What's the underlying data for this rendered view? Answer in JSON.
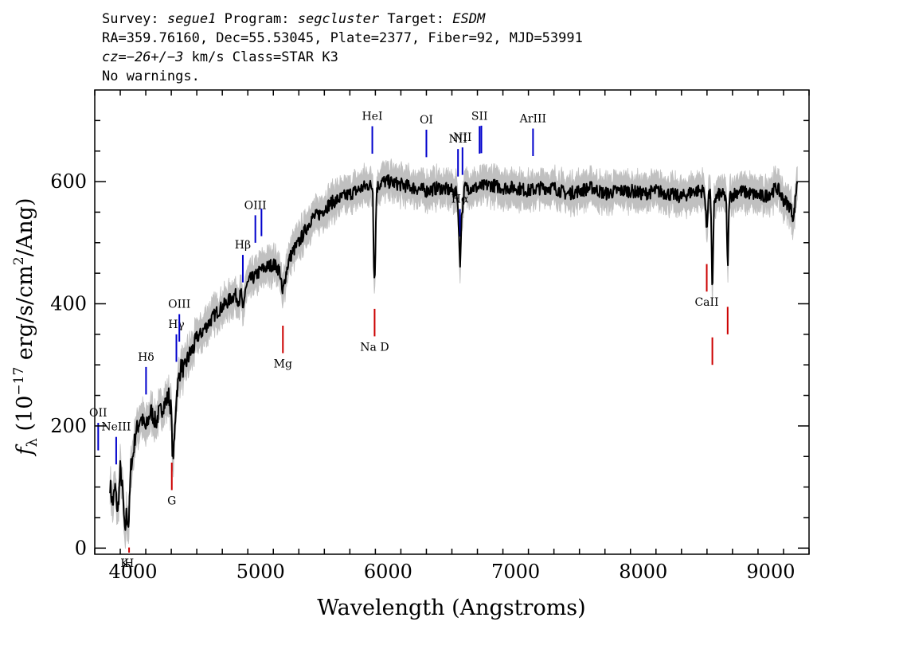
{
  "header": {
    "survey_label": "Survey:",
    "survey": "segue1",
    "program_label": "Program:",
    "program": "segcluster",
    "target_label": "Target:",
    "target": "ESDM",
    "line2": "RA=359.76160, Dec=55.53045, Plate=2377, Fiber=92, MJD=53991",
    "cz_label": "cz=",
    "cz_value": "−26+/−3",
    "cz_unit": " km/s Class=STAR K3",
    "line4": "No warnings."
  },
  "chart_data": {
    "type": "line",
    "title": "",
    "xlabel": "Wavelength (Angstroms)",
    "ylabel": "f_λ (10^-17 erg/s/cm^2/Ang)",
    "ylabel_parts": {
      "f": "f",
      "lambda": "λ",
      "paren_open": " (10",
      "exp1": "−17",
      "mid": " erg/s/cm",
      "exp2": "2",
      "end": "/Ang)"
    },
    "xlim": [
      3700,
      9300
    ],
    "ylim": [
      -10,
      750
    ],
    "x_ticks": [
      4000,
      5000,
      6000,
      7000,
      8000,
      9000
    ],
    "y_ticks": [
      0,
      200,
      400,
      600
    ],
    "series": [
      {
        "name": "flux",
        "color": "#000000",
        "noise_band_color": "#c0c0c0",
        "points": [
          [
            3820,
            105
          ],
          [
            3840,
            70
          ],
          [
            3860,
            100
          ],
          [
            3880,
            55
          ],
          [
            3900,
            130
          ],
          [
            3920,
            90
          ],
          [
            3935,
            20
          ],
          [
            3950,
            60
          ],
          [
            3965,
            35
          ],
          [
            3985,
            140
          ],
          [
            4000,
            150
          ],
          [
            4020,
            190
          ],
          [
            4040,
            200
          ],
          [
            4060,
            215
          ],
          [
            4080,
            205
          ],
          [
            4100,
            195
          ],
          [
            4120,
            210
          ],
          [
            4140,
            225
          ],
          [
            4160,
            215
          ],
          [
            4180,
            205
          ],
          [
            4200,
            220
          ],
          [
            4220,
            225
          ],
          [
            4240,
            235
          ],
          [
            4260,
            240
          ],
          [
            4280,
            250
          ],
          [
            4300,
            225
          ],
          [
            4310,
            150
          ],
          [
            4320,
            160
          ],
          [
            4340,
            250
          ],
          [
            4360,
            280
          ],
          [
            4380,
            300
          ],
          [
            4400,
            290
          ],
          [
            4420,
            305
          ],
          [
            4450,
            320
          ],
          [
            4480,
            330
          ],
          [
            4500,
            345
          ],
          [
            4530,
            350
          ],
          [
            4560,
            360
          ],
          [
            4600,
            370
          ],
          [
            4650,
            385
          ],
          [
            4700,
            395
          ],
          [
            4750,
            405
          ],
          [
            4800,
            415
          ],
          [
            4830,
            405
          ],
          [
            4850,
            420
          ],
          [
            4861,
            380
          ],
          [
            4880,
            425
          ],
          [
            4920,
            440
          ],
          [
            4960,
            445
          ],
          [
            5000,
            455
          ],
          [
            5050,
            460
          ],
          [
            5100,
            465
          ],
          [
            5150,
            455
          ],
          [
            5172,
            415
          ],
          [
            5190,
            440
          ],
          [
            5220,
            470
          ],
          [
            5250,
            485
          ],
          [
            5300,
            500
          ],
          [
            5350,
            520
          ],
          [
            5400,
            540
          ],
          [
            5450,
            545
          ],
          [
            5500,
            555
          ],
          [
            5550,
            565
          ],
          [
            5600,
            570
          ],
          [
            5650,
            575
          ],
          [
            5700,
            580
          ],
          [
            5750,
            585
          ],
          [
            5800,
            590
          ],
          [
            5850,
            595
          ],
          [
            5880,
            590
          ],
          [
            5890,
            440
          ],
          [
            5896,
            450
          ],
          [
            5910,
            590
          ],
          [
            5950,
            600
          ],
          [
            6000,
            600
          ],
          [
            6100,
            595
          ],
          [
            6200,
            590
          ],
          [
            6300,
            585
          ],
          [
            6400,
            590
          ],
          [
            6500,
            585
          ],
          [
            6540,
            580
          ],
          [
            6552,
            540
          ],
          [
            6563,
            455
          ],
          [
            6575,
            540
          ],
          [
            6600,
            590
          ],
          [
            6700,
            590
          ],
          [
            6800,
            595
          ],
          [
            6900,
            590
          ],
          [
            7000,
            590
          ],
          [
            7100,
            585
          ],
          [
            7200,
            590
          ],
          [
            7300,
            590
          ],
          [
            7400,
            580
          ],
          [
            7500,
            585
          ],
          [
            7600,
            590
          ],
          [
            7700,
            580
          ],
          [
            7800,
            585
          ],
          [
            7900,
            585
          ],
          [
            8000,
            580
          ],
          [
            8100,
            585
          ],
          [
            8200,
            580
          ],
          [
            8300,
            575
          ],
          [
            8400,
            585
          ],
          [
            8480,
            585
          ],
          [
            8498,
            520
          ],
          [
            8512,
            580
          ],
          [
            8530,
            575
          ],
          [
            8542,
            400
          ],
          [
            8556,
            570
          ],
          [
            8600,
            580
          ],
          [
            8650,
            575
          ],
          [
            8662,
            450
          ],
          [
            8675,
            575
          ],
          [
            8750,
            585
          ],
          [
            8850,
            580
          ],
          [
            8950,
            575
          ],
          [
            9050,
            590
          ],
          [
            9100,
            570
          ],
          [
            9150,
            560
          ],
          [
            9180,
            540
          ],
          [
            9210,
            610
          ]
        ]
      }
    ],
    "emission_lines": [
      {
        "label": "OII",
        "wavelength": 3727,
        "color": "#0000cc"
      },
      {
        "label": "NeIII",
        "wavelength": 3868,
        "color": "#0000cc"
      },
      {
        "label": "Hδ",
        "wavelength": 4102,
        "color": "#0000cc"
      },
      {
        "label": "Hγ",
        "wavelength": 4340,
        "color": "#0000cc"
      },
      {
        "label": "OIII",
        "wavelength": 4363,
        "color": "#0000cc"
      },
      {
        "label": "Hβ",
        "wavelength": 4861,
        "color": "#0000cc"
      },
      {
        "label": "OIII",
        "wavelength": 4959,
        "color": "#0000cc"
      },
      {
        "label": "OIII",
        "wavelength": 5007,
        "color": "#0000cc"
      },
      {
        "label": "HeI",
        "wavelength": 5876,
        "color": "#0000cc"
      },
      {
        "label": "OI",
        "wavelength": 6300,
        "color": "#0000cc"
      },
      {
        "label": "NII",
        "wavelength": 6548,
        "color": "#0000cc"
      },
      {
        "label": "Hα",
        "wavelength": 6563,
        "color": "#0000cc"
      },
      {
        "label": "NII",
        "wavelength": 6583,
        "color": "#0000cc"
      },
      {
        "label": "SII",
        "wavelength": 6717,
        "color": "#0000cc"
      },
      {
        "label": "SII",
        "wavelength": 6731,
        "color": "#0000cc"
      },
      {
        "label": "ArIII",
        "wavelength": 7136,
        "color": "#0000cc"
      }
    ],
    "absorption_lines": [
      {
        "label": "K",
        "wavelength": 3934,
        "color": "#cc0000"
      },
      {
        "label": "H",
        "wavelength": 3969,
        "color": "#cc0000"
      },
      {
        "label": "G",
        "wavelength": 4304,
        "color": "#cc0000"
      },
      {
        "label": "Mg",
        "wavelength": 5175,
        "color": "#cc0000"
      },
      {
        "label": "Na D",
        "wavelength": 5894,
        "color": "#cc0000"
      },
      {
        "label": "CaII",
        "wavelength": 8498,
        "color": "#cc0000"
      },
      {
        "label": "CaII",
        "wavelength": 8542,
        "color": "#cc0000"
      },
      {
        "label": "CaII",
        "wavelength": 8662,
        "color": "#cc0000"
      }
    ]
  }
}
